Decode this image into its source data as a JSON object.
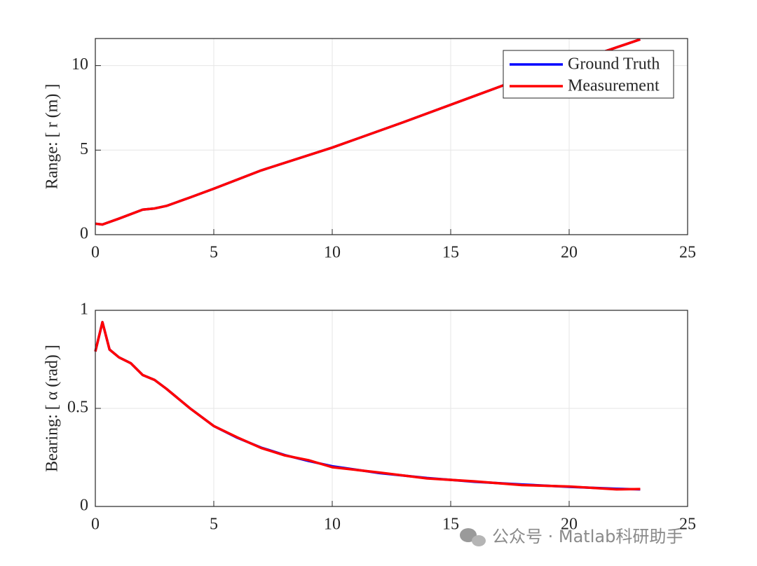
{
  "chart_data": [
    {
      "type": "line",
      "ylabel": "Range: [ r (m) ]",
      "x": [
        0,
        0.3,
        1,
        2,
        2.5,
        3,
        4,
        5,
        7,
        10,
        13,
        16,
        19,
        21,
        23
      ],
      "series": [
        {
          "name": "Ground Truth",
          "color": "#0000ff",
          "values": [
            0.65,
            0.6,
            0.95,
            1.48,
            1.55,
            1.7,
            2.2,
            2.72,
            3.8,
            5.15,
            6.65,
            8.2,
            9.75,
            10.6,
            11.55
          ]
        },
        {
          "name": "Measurement",
          "color": "#ff0000",
          "values": [
            0.65,
            0.6,
            0.95,
            1.48,
            1.55,
            1.7,
            2.2,
            2.72,
            3.8,
            5.15,
            6.65,
            8.2,
            9.75,
            10.6,
            11.55
          ]
        }
      ],
      "xlim": [
        0,
        25
      ],
      "xticks": [
        0,
        5,
        10,
        15,
        20,
        25
      ],
      "ylim": [
        0,
        11.6
      ],
      "yticks": [
        0,
        5,
        10
      ],
      "grid": true,
      "legend": "northeast"
    },
    {
      "type": "line",
      "ylabel": "Bearing: [ α (rad) ]",
      "x": [
        0,
        0.3,
        0.6,
        1,
        1.5,
        2,
        2.5,
        3,
        4,
        5,
        6,
        7,
        8,
        9,
        10,
        12,
        14,
        16,
        18,
        20,
        22,
        23
      ],
      "series": [
        {
          "color": "#0000ff",
          "values": [
            0.79,
            0.94,
            0.8,
            0.76,
            0.73,
            0.67,
            0.645,
            0.6,
            0.5,
            0.41,
            0.35,
            0.3,
            0.262,
            0.232,
            0.205,
            0.17,
            0.145,
            0.126,
            0.112,
            0.1,
            0.09,
            0.087
          ]
        },
        {
          "color": "#ff0000",
          "values": [
            0.79,
            0.94,
            0.8,
            0.76,
            0.73,
            0.67,
            0.645,
            0.6,
            0.5,
            0.41,
            0.352,
            0.298,
            0.26,
            0.236,
            0.2,
            0.173,
            0.143,
            0.128,
            0.109,
            0.102,
            0.087,
            0.089
          ]
        }
      ],
      "xlim": [
        0,
        25
      ],
      "xticks": [
        0,
        5,
        10,
        15,
        20,
        25
      ],
      "ylim": [
        0,
        1
      ],
      "yticks": [
        0,
        0.5,
        1
      ],
      "grid": true
    }
  ],
  "watermark": "公众号 · Matlab科研助手"
}
